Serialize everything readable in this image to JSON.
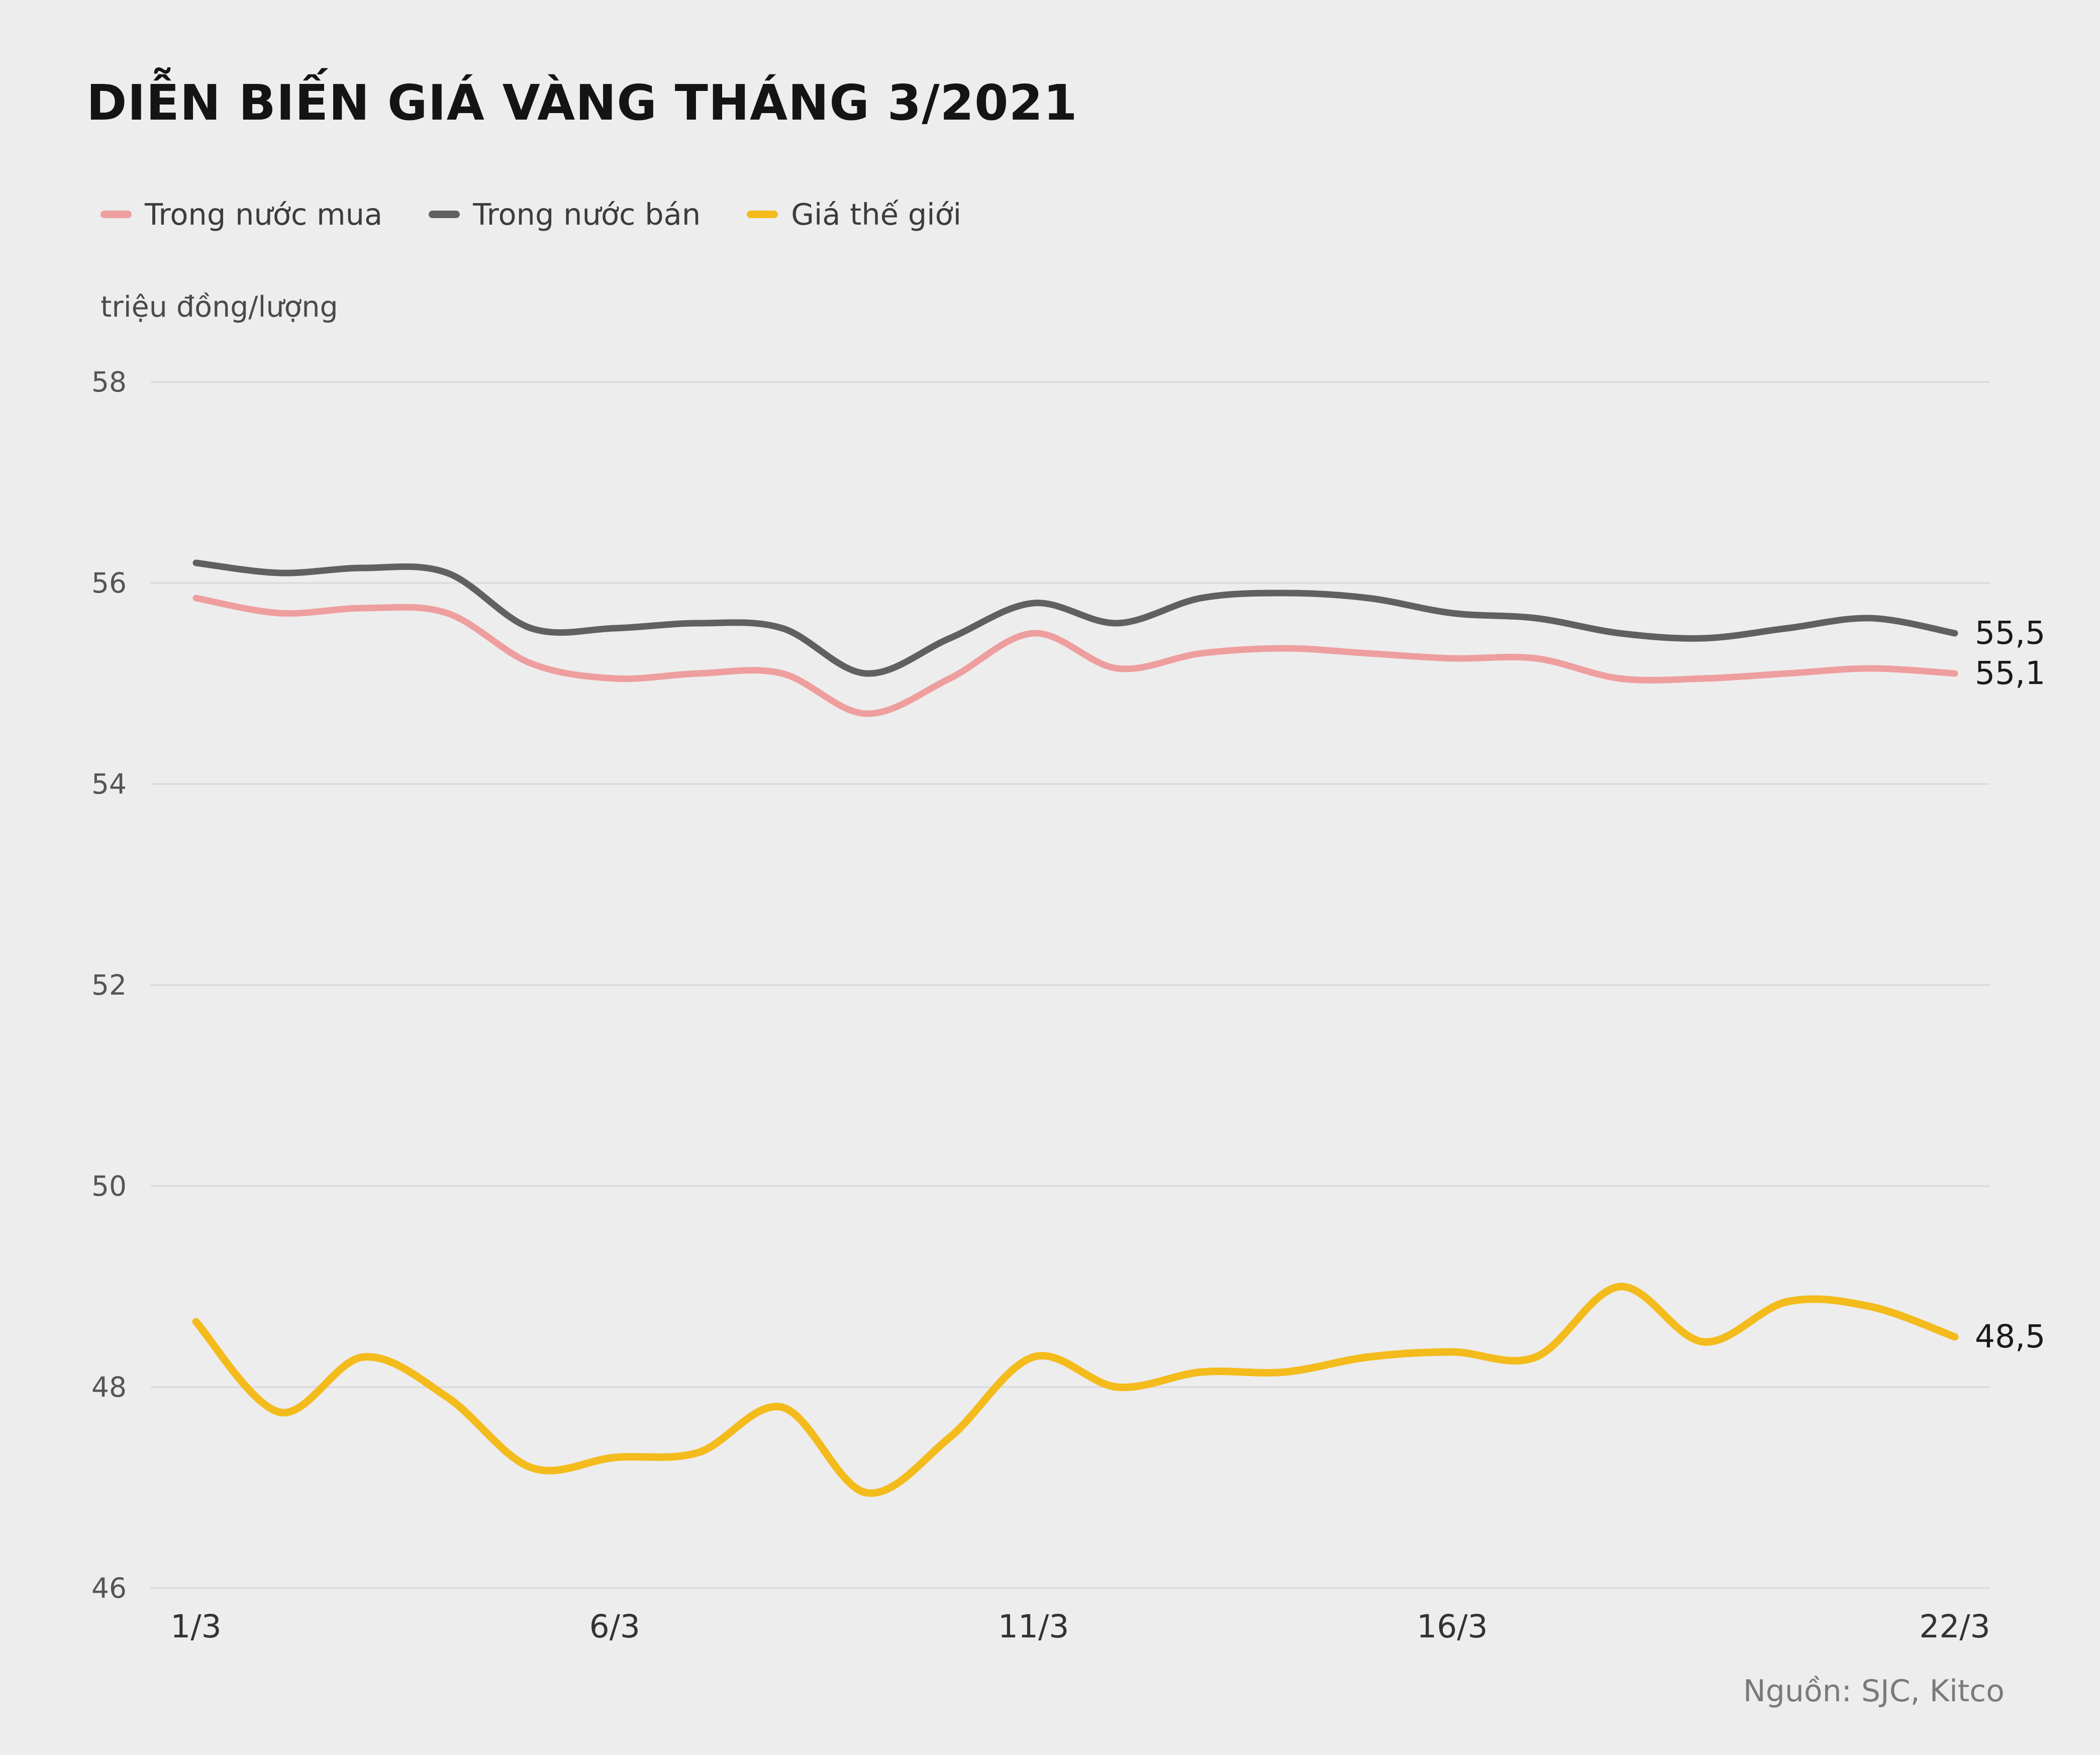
{
  "title": "DIỄN BIẾN GIÁ VÀNG THÁNG 3/2021",
  "unit_label": "triệu đồng/lượng",
  "source": "Nguồn: SJC, Kitco",
  "colors": {
    "background": "#ededed",
    "grid": "#d9d9d9",
    "axis_text": "#555555",
    "xaxis_text": "#333333",
    "end_label_text": "#1a1a1a",
    "buy": "#ee9e9e",
    "sell": "#606060",
    "world": "#f3bb1c"
  },
  "chart_data": {
    "type": "line",
    "title": "DIỄN BIẾN GIÁ VÀNG THÁNG 3/2021",
    "ylabel": "triệu đồng/lượng",
    "ylim": [
      46,
      58
    ],
    "yticks": [
      58,
      56,
      54,
      52,
      50,
      48,
      46
    ],
    "grid": "horizontal",
    "legend_position": "top",
    "x": [
      1,
      2,
      3,
      4,
      5,
      6,
      7,
      8,
      9,
      10,
      11,
      12,
      13,
      14,
      15,
      16,
      17,
      18,
      19,
      20,
      21,
      22
    ],
    "xticks": [
      {
        "label": "1/3",
        "day": 1
      },
      {
        "label": "6/3",
        "day": 6
      },
      {
        "label": "11/3",
        "day": 11
      },
      {
        "label": "16/3",
        "day": 16
      },
      {
        "label": "22/3",
        "day": 22
      }
    ],
    "series": [
      {
        "name": "Trong nước mua",
        "color_key": "buy",
        "end_label": "55,1",
        "values": [
          55.85,
          55.7,
          55.75,
          55.7,
          55.2,
          55.05,
          55.1,
          55.1,
          54.7,
          55.05,
          55.5,
          55.15,
          55.3,
          55.35,
          55.3,
          55.25,
          55.25,
          55.05,
          55.05,
          55.1,
          55.15,
          55.1
        ]
      },
      {
        "name": "Trong nước bán",
        "color_key": "sell",
        "end_label": "55,5",
        "values": [
          56.2,
          56.1,
          56.15,
          56.1,
          55.55,
          55.55,
          55.6,
          55.55,
          55.1,
          55.45,
          55.8,
          55.6,
          55.85,
          55.9,
          55.85,
          55.7,
          55.65,
          55.5,
          55.45,
          55.55,
          55.65,
          55.5
        ]
      },
      {
        "name": "Giá thế giới",
        "color_key": "world",
        "end_label": "48,5",
        "values": [
          48.65,
          47.75,
          48.3,
          47.9,
          47.2,
          47.3,
          47.35,
          47.8,
          46.95,
          47.5,
          48.3,
          48.0,
          48.15,
          48.15,
          48.3,
          48.35,
          48.3,
          49.0,
          48.45,
          48.85,
          48.8,
          48.5
        ]
      }
    ]
  }
}
